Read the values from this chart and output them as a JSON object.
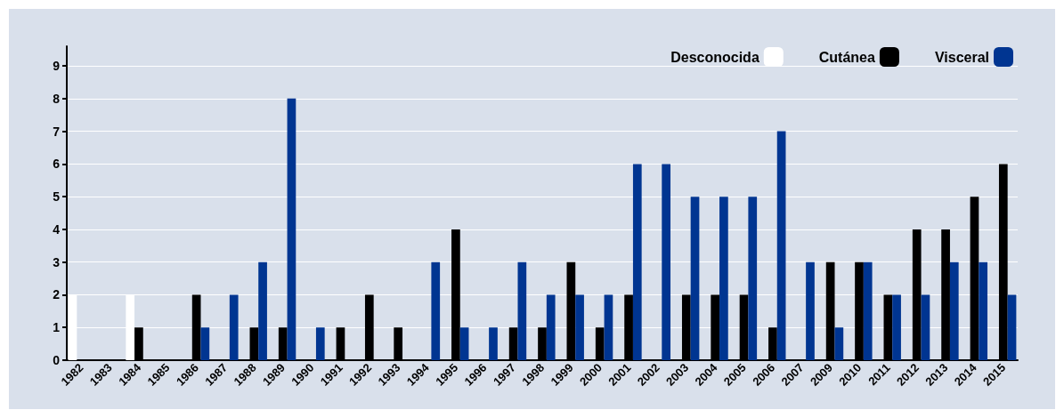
{
  "chart_data": {
    "type": "bar",
    "categories": [
      "1982",
      "1983",
      "1984",
      "1985",
      "1986",
      "1987",
      "1988",
      "1989",
      "1990",
      "1991",
      "1992",
      "1993",
      "1994",
      "1995",
      "1996",
      "1997",
      "1998",
      "1999",
      "2000",
      "2001",
      "2002",
      "2003",
      "2004",
      "2005",
      "2006",
      "2007",
      "2009",
      "2010",
      "2011",
      "2012",
      "2013",
      "2014",
      "2015"
    ],
    "series": [
      {
        "name": "Desconocida",
        "color": "#ffffff",
        "values": [
          2,
          null,
          2,
          null,
          null,
          null,
          null,
          null,
          null,
          null,
          null,
          null,
          null,
          null,
          null,
          null,
          null,
          null,
          null,
          null,
          null,
          null,
          null,
          null,
          null,
          null,
          null,
          null,
          null,
          null,
          null,
          null,
          null
        ]
      },
      {
        "name": "Cutánea",
        "color": "#000000",
        "values": [
          null,
          null,
          1,
          null,
          2,
          null,
          1,
          1,
          null,
          1,
          2,
          1,
          null,
          4,
          null,
          1,
          1,
          3,
          1,
          2,
          null,
          2,
          2,
          2,
          1,
          null,
          3,
          3,
          2,
          4,
          4,
          5,
          6
        ]
      },
      {
        "name": "Visceral",
        "color": "#003591",
        "values": [
          null,
          null,
          null,
          null,
          1,
          2,
          3,
          8,
          1,
          null,
          null,
          null,
          3,
          1,
          1,
          3,
          2,
          2,
          2,
          6,
          6,
          5,
          5,
          5,
          7,
          3,
          1,
          3,
          2,
          2,
          3,
          3,
          2
        ]
      }
    ],
    "ylim": [
      0,
      9.6
    ],
    "yticks": [
      0,
      1,
      2,
      3,
      4,
      5,
      6,
      7,
      8,
      9
    ],
    "grid": "y",
    "legend": "top right"
  }
}
